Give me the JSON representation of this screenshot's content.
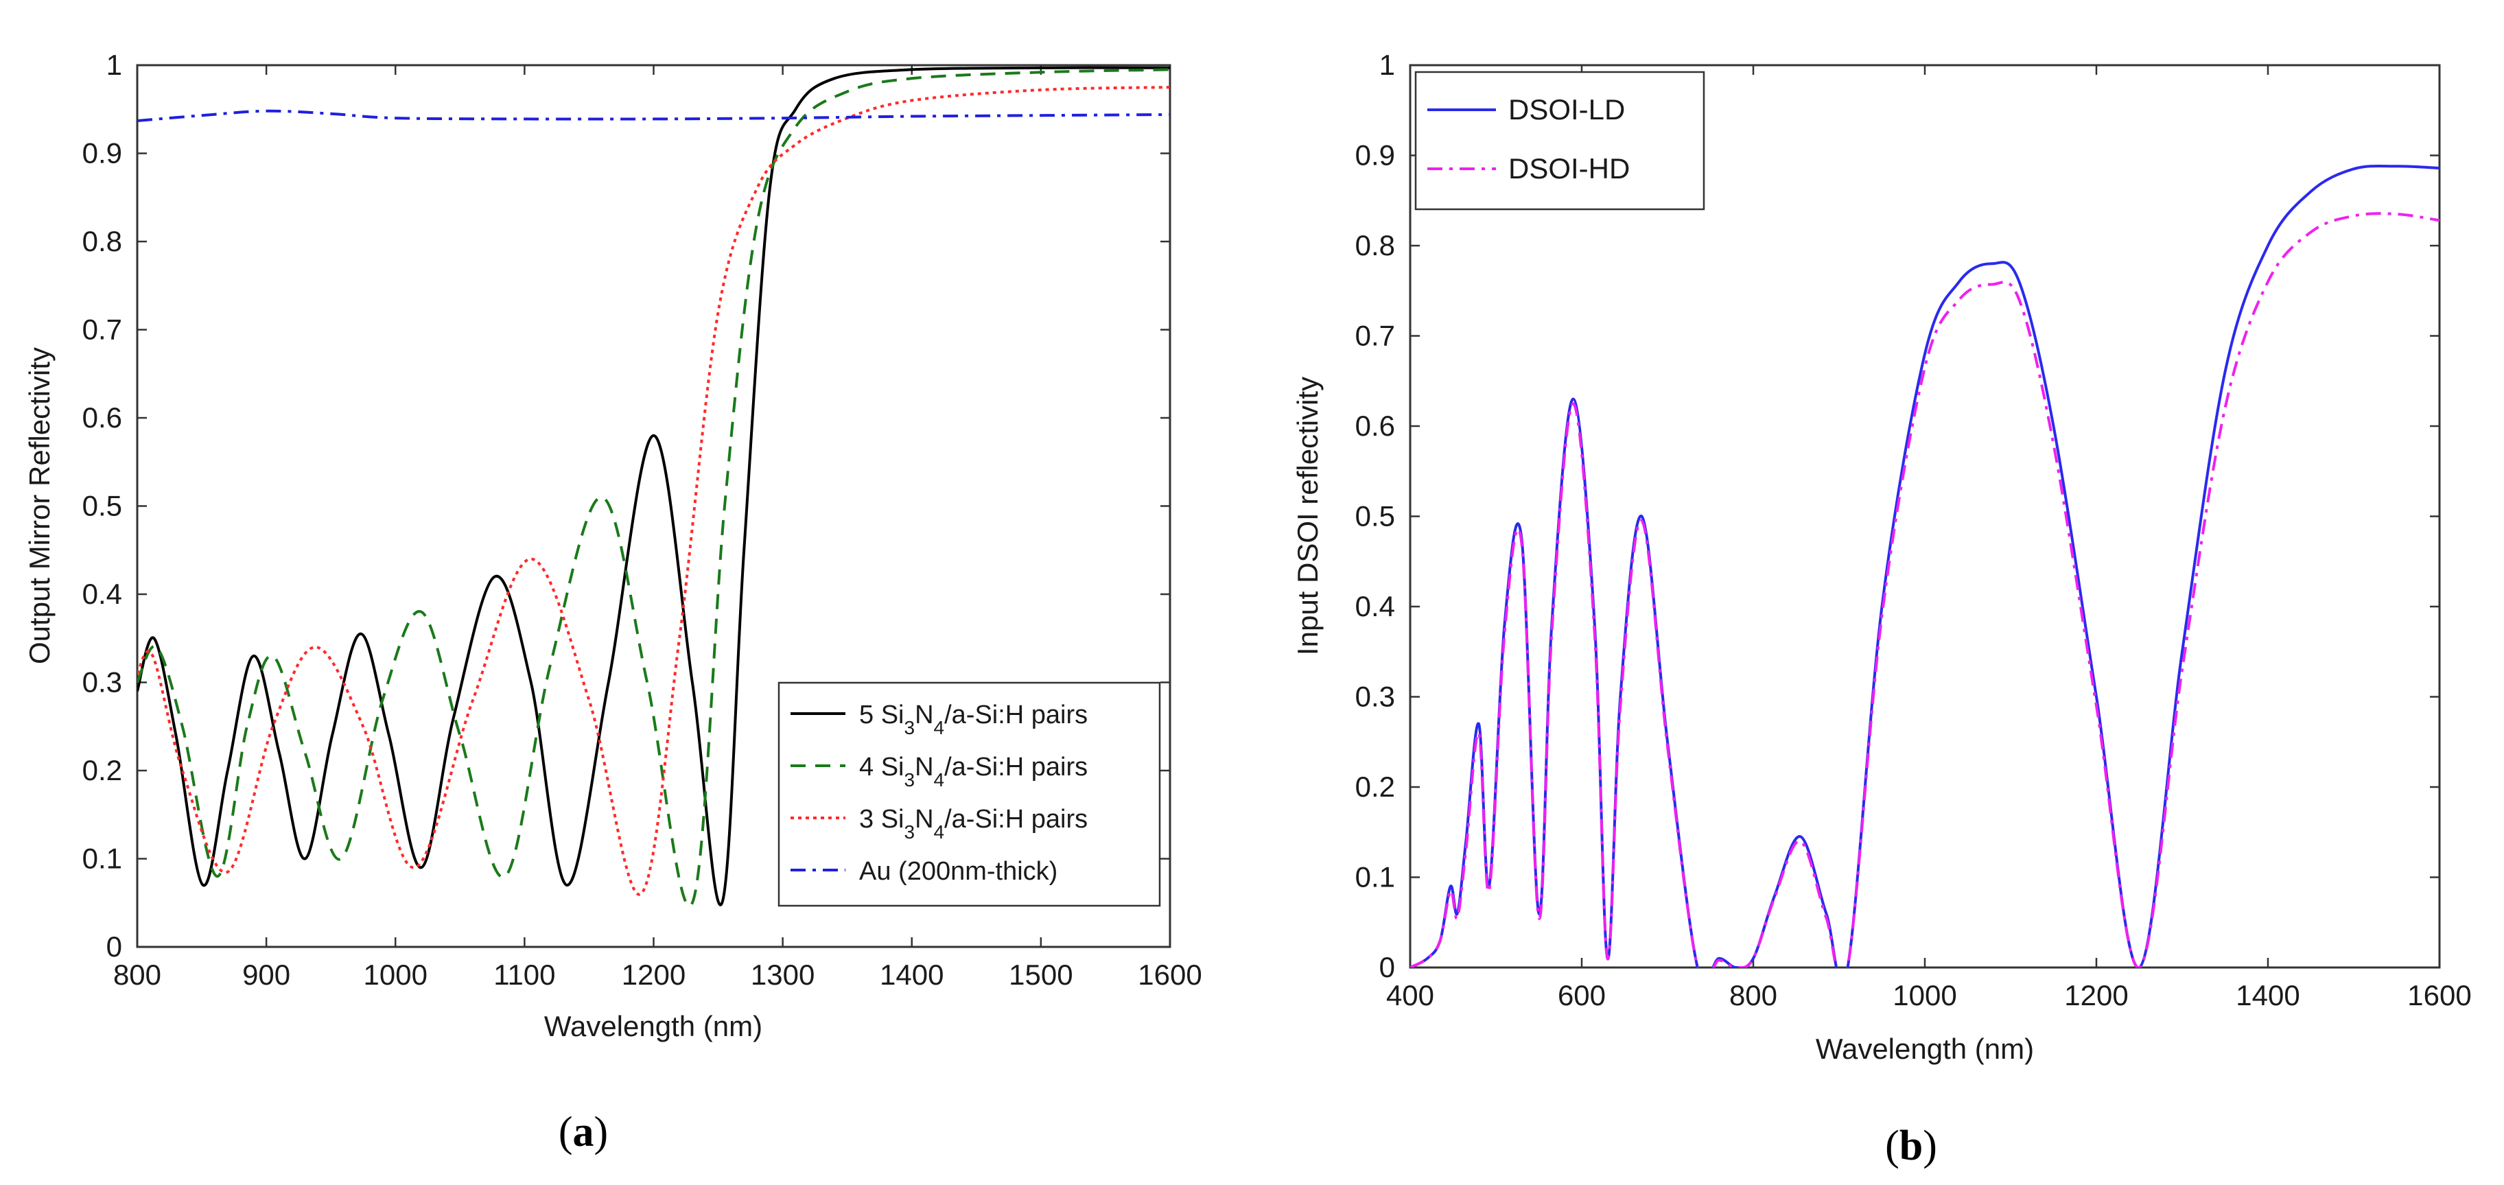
{
  "chart_data": [
    {
      "type": "line",
      "panel_label": "a",
      "xlabel": "Wavelength (nm)",
      "ylabel": "Output Mirror Reflectivity",
      "xlim": [
        800,
        1600
      ],
      "ylim": [
        0,
        1
      ],
      "xticks": [
        "800",
        "900",
        "1000",
        "1100",
        "1200",
        "1300",
        "1400",
        "1500",
        "1600"
      ],
      "yticks": [
        "0",
        "0.1",
        "0.2",
        "0.3",
        "0.4",
        "0.5",
        "0.6",
        "0.7",
        "0.8",
        "0.9",
        "1"
      ],
      "grid": false,
      "legend_position": "bottom-right",
      "series": [
        {
          "name": "5 Si3N4/a-Si:H pairs",
          "legend": {
            "pre": "5 Si",
            "sub1": "3",
            "mid": "N",
            "sub2": "4",
            "post": "/a-Si:H pairs"
          },
          "color": "#000000",
          "dash": "solid",
          "x": [
            800,
            813,
            830,
            851,
            870,
            890,
            910,
            930,
            951,
            973,
            995,
            1020,
            1045,
            1077,
            1105,
            1133,
            1165,
            1200,
            1230,
            1253,
            1270,
            1290,
            1310,
            1340,
            1400,
            1500,
            1600
          ],
          "y": [
            0.29,
            0.35,
            0.24,
            0.07,
            0.2,
            0.33,
            0.22,
            0.1,
            0.24,
            0.355,
            0.24,
            0.09,
            0.26,
            0.42,
            0.3,
            0.07,
            0.3,
            0.58,
            0.3,
            0.05,
            0.45,
            0.86,
            0.95,
            0.985,
            0.995,
            0.997,
            0.997
          ]
        },
        {
          "name": "4 Si3N4/a-Si:H pairs",
          "legend": {
            "pre": "4 Si",
            "sub1": "3",
            "mid": "N",
            "sub2": "4",
            "post": "/a-Si:H pairs"
          },
          "color": "#1a7a1a",
          "dash": "long-dash",
          "x": [
            800,
            815,
            835,
            862,
            885,
            905,
            930,
            958,
            990,
            1020,
            1050,
            1085,
            1120,
            1160,
            1195,
            1230,
            1255,
            1280,
            1310,
            1350,
            1400,
            1500,
            1600
          ],
          "y": [
            0.3,
            0.34,
            0.25,
            0.08,
            0.25,
            0.33,
            0.22,
            0.1,
            0.28,
            0.38,
            0.24,
            0.08,
            0.32,
            0.51,
            0.3,
            0.05,
            0.5,
            0.82,
            0.93,
            0.97,
            0.985,
            0.992,
            0.995
          ]
        },
        {
          "name": "3 Si3N4/a-Si:H pairs",
          "legend": {
            "pre": "3 Si",
            "sub1": "3",
            "mid": "N",
            "sub2": "4",
            "post": "/a-Si:H pairs"
          },
          "color": "#ff2a2a",
          "dash": "dotted",
          "x": [
            800,
            812,
            835,
            870,
            905,
            938,
            975,
            1015,
            1060,
            1105,
            1150,
            1190,
            1220,
            1250,
            1280,
            1310,
            1350,
            1400,
            1500,
            1600
          ],
          "y": [
            0.31,
            0.33,
            0.2,
            0.085,
            0.25,
            0.34,
            0.25,
            0.09,
            0.28,
            0.44,
            0.28,
            0.06,
            0.35,
            0.72,
            0.86,
            0.91,
            0.94,
            0.96,
            0.972,
            0.975
          ]
        },
        {
          "name": "Au (200nm-thick)",
          "legend": {
            "pre": "Au (200nm-thick)",
            "sub1": "",
            "mid": "",
            "sub2": "",
            "post": ""
          },
          "color": "#1f1fe0",
          "dash": "dash-dot",
          "x": [
            800,
            850,
            900,
            950,
            1000,
            1100,
            1200,
            1300,
            1400,
            1500,
            1600
          ],
          "y": [
            0.937,
            0.943,
            0.948,
            0.945,
            0.94,
            0.939,
            0.939,
            0.94,
            0.942,
            0.943,
            0.944
          ]
        }
      ]
    },
    {
      "type": "line",
      "panel_label": "b",
      "xlabel": "Wavelength (nm)",
      "ylabel": "Input DSOI reflectivity",
      "xlim": [
        400,
        1600
      ],
      "ylim": [
        0,
        1
      ],
      "xticks": [
        "400",
        "600",
        "800",
        "1000",
        "1200",
        "1400",
        "1600"
      ],
      "yticks": [
        "0",
        "0.1",
        "0.2",
        "0.3",
        "0.4",
        "0.5",
        "0.6",
        "0.7",
        "0.8",
        "0.9",
        "1"
      ],
      "grid": false,
      "legend_position": "top-left",
      "series": [
        {
          "name": "DSOI-LD",
          "color": "#2a2aee",
          "dash": "solid",
          "x": [
            400,
            420,
            435,
            447,
            455,
            465,
            480,
            492,
            510,
            530,
            550,
            565,
            590,
            615,
            630,
            645,
            670,
            700,
            735,
            760,
            780,
            800,
            825,
            855,
            885,
            910,
            950,
            1000,
            1040,
            1078,
            1110,
            1150,
            1200,
            1250,
            1300,
            1350,
            1400,
            1450,
            1500,
            1550,
            1600
          ],
          "y": [
            0,
            0.01,
            0.03,
            0.09,
            0.06,
            0.14,
            0.27,
            0.09,
            0.38,
            0.475,
            0.06,
            0.38,
            0.63,
            0.38,
            0.01,
            0.3,
            0.5,
            0.25,
            0,
            0.01,
            0,
            0.01,
            0.08,
            0.145,
            0.06,
            0,
            0.4,
            0.68,
            0.76,
            0.78,
            0.76,
            0.6,
            0.3,
            0,
            0.35,
            0.66,
            0.8,
            0.86,
            0.885,
            0.888,
            0.886
          ]
        },
        {
          "name": "DSOI-HD",
          "color": "#ee22ee",
          "dash": "dash-dot",
          "x": [
            400,
            420,
            435,
            447,
            455,
            465,
            480,
            492,
            510,
            530,
            550,
            565,
            590,
            615,
            630,
            645,
            670,
            700,
            735,
            760,
            780,
            800,
            825,
            855,
            885,
            910,
            950,
            1000,
            1040,
            1078,
            1110,
            1150,
            1200,
            1250,
            1300,
            1350,
            1400,
            1450,
            1500,
            1550,
            1600
          ],
          "y": [
            0,
            0.01,
            0.03,
            0.085,
            0.055,
            0.13,
            0.26,
            0.085,
            0.37,
            0.47,
            0.055,
            0.37,
            0.625,
            0.37,
            0.01,
            0.29,
            0.495,
            0.245,
            0,
            0.008,
            0,
            0.01,
            0.078,
            0.14,
            0.055,
            0,
            0.39,
            0.665,
            0.74,
            0.757,
            0.74,
            0.58,
            0.29,
            0,
            0.33,
            0.62,
            0.76,
            0.815,
            0.833,
            0.835,
            0.828
          ]
        }
      ]
    }
  ]
}
